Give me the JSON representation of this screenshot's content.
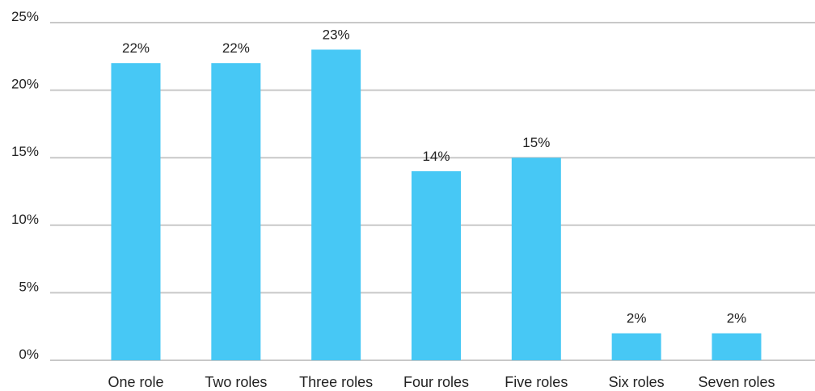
{
  "chart_data": {
    "type": "bar",
    "categories": [
      "One role",
      "Two roles",
      "Three roles",
      "Four roles",
      "Five roles",
      "Six roles",
      "Seven roles"
    ],
    "values": [
      22,
      22,
      23,
      14,
      15,
      2,
      2
    ],
    "data_labels": [
      "22%",
      "22%",
      "23%",
      "14%",
      "15%",
      "2%",
      "2%"
    ],
    "ylim": [
      0,
      25
    ],
    "yticks": [
      0,
      5,
      10,
      15,
      20,
      25
    ],
    "ytick_labels": [
      "0%",
      "5%",
      "10%",
      "15%",
      "20%",
      "25%"
    ],
    "grid": true,
    "bar_color": "#47c8f5",
    "title": "",
    "xlabel": "",
    "ylabel": ""
  }
}
